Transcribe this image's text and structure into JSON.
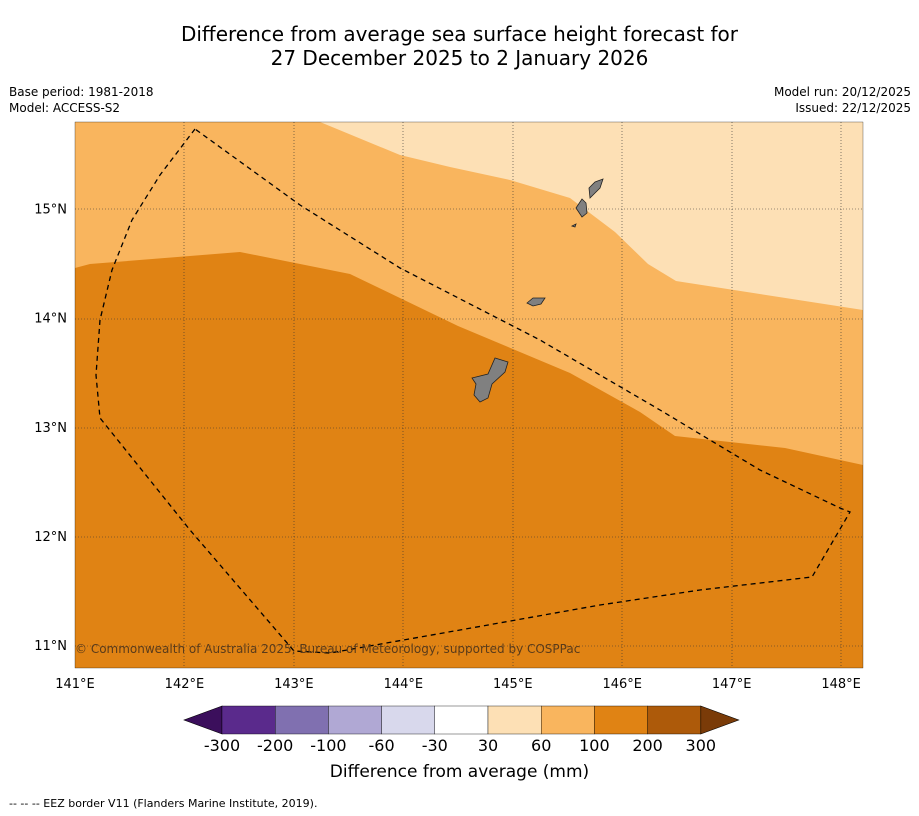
{
  "title": {
    "line1": "Difference from average sea surface height forecast for",
    "line2": "27 December 2025 to 2 January 2026"
  },
  "meta_left": {
    "base_period": "Base period: 1981-2018",
    "model": "Model: ACCESS-S2"
  },
  "meta_right": {
    "model_run": "Model run: 20/12/2025",
    "issued": "Issued: 22/12/2025"
  },
  "map": {
    "lon_range": [
      141.0,
      148.2
    ],
    "lat_range": [
      10.8,
      15.8
    ],
    "lon_ticks": [
      141,
      142,
      143,
      144,
      145,
      146,
      147,
      148
    ],
    "lon_labels": [
      "141°E",
      "142°E",
      "143°E",
      "144°E",
      "145°E",
      "146°E",
      "147°E",
      "148°E"
    ],
    "lat_ticks": [
      15,
      14,
      13,
      12,
      11
    ],
    "lat_labels": [
      "15°N",
      "14°N",
      "13°N",
      "12°N",
      "11°N"
    ],
    "copyright": "© Commonwealth of Australia 2025, Bureau of Meteorology, supported by COSPPac",
    "land_color": "#808080",
    "islands": [
      "Guam",
      "Rota",
      "Tinian",
      "Saipan"
    ]
  },
  "colorbar": {
    "colors": [
      "#3b0f5c",
      "#5a2a8c",
      "#8070b0",
      "#b0a8d4",
      "#d8d8ec",
      "#ffffff",
      "#fde0b5",
      "#f9b55e",
      "#e08314",
      "#ad5a0a",
      "#7a3b08"
    ],
    "tick_labels": [
      "-300",
      "-200",
      "-100",
      "-60",
      "-30",
      "30",
      "60",
      "100",
      "200",
      "300"
    ],
    "title": "Difference from average (mm)"
  },
  "footer": "-- -- -- EEZ border V11 (Flanders Marine Institute, 2019)."
}
